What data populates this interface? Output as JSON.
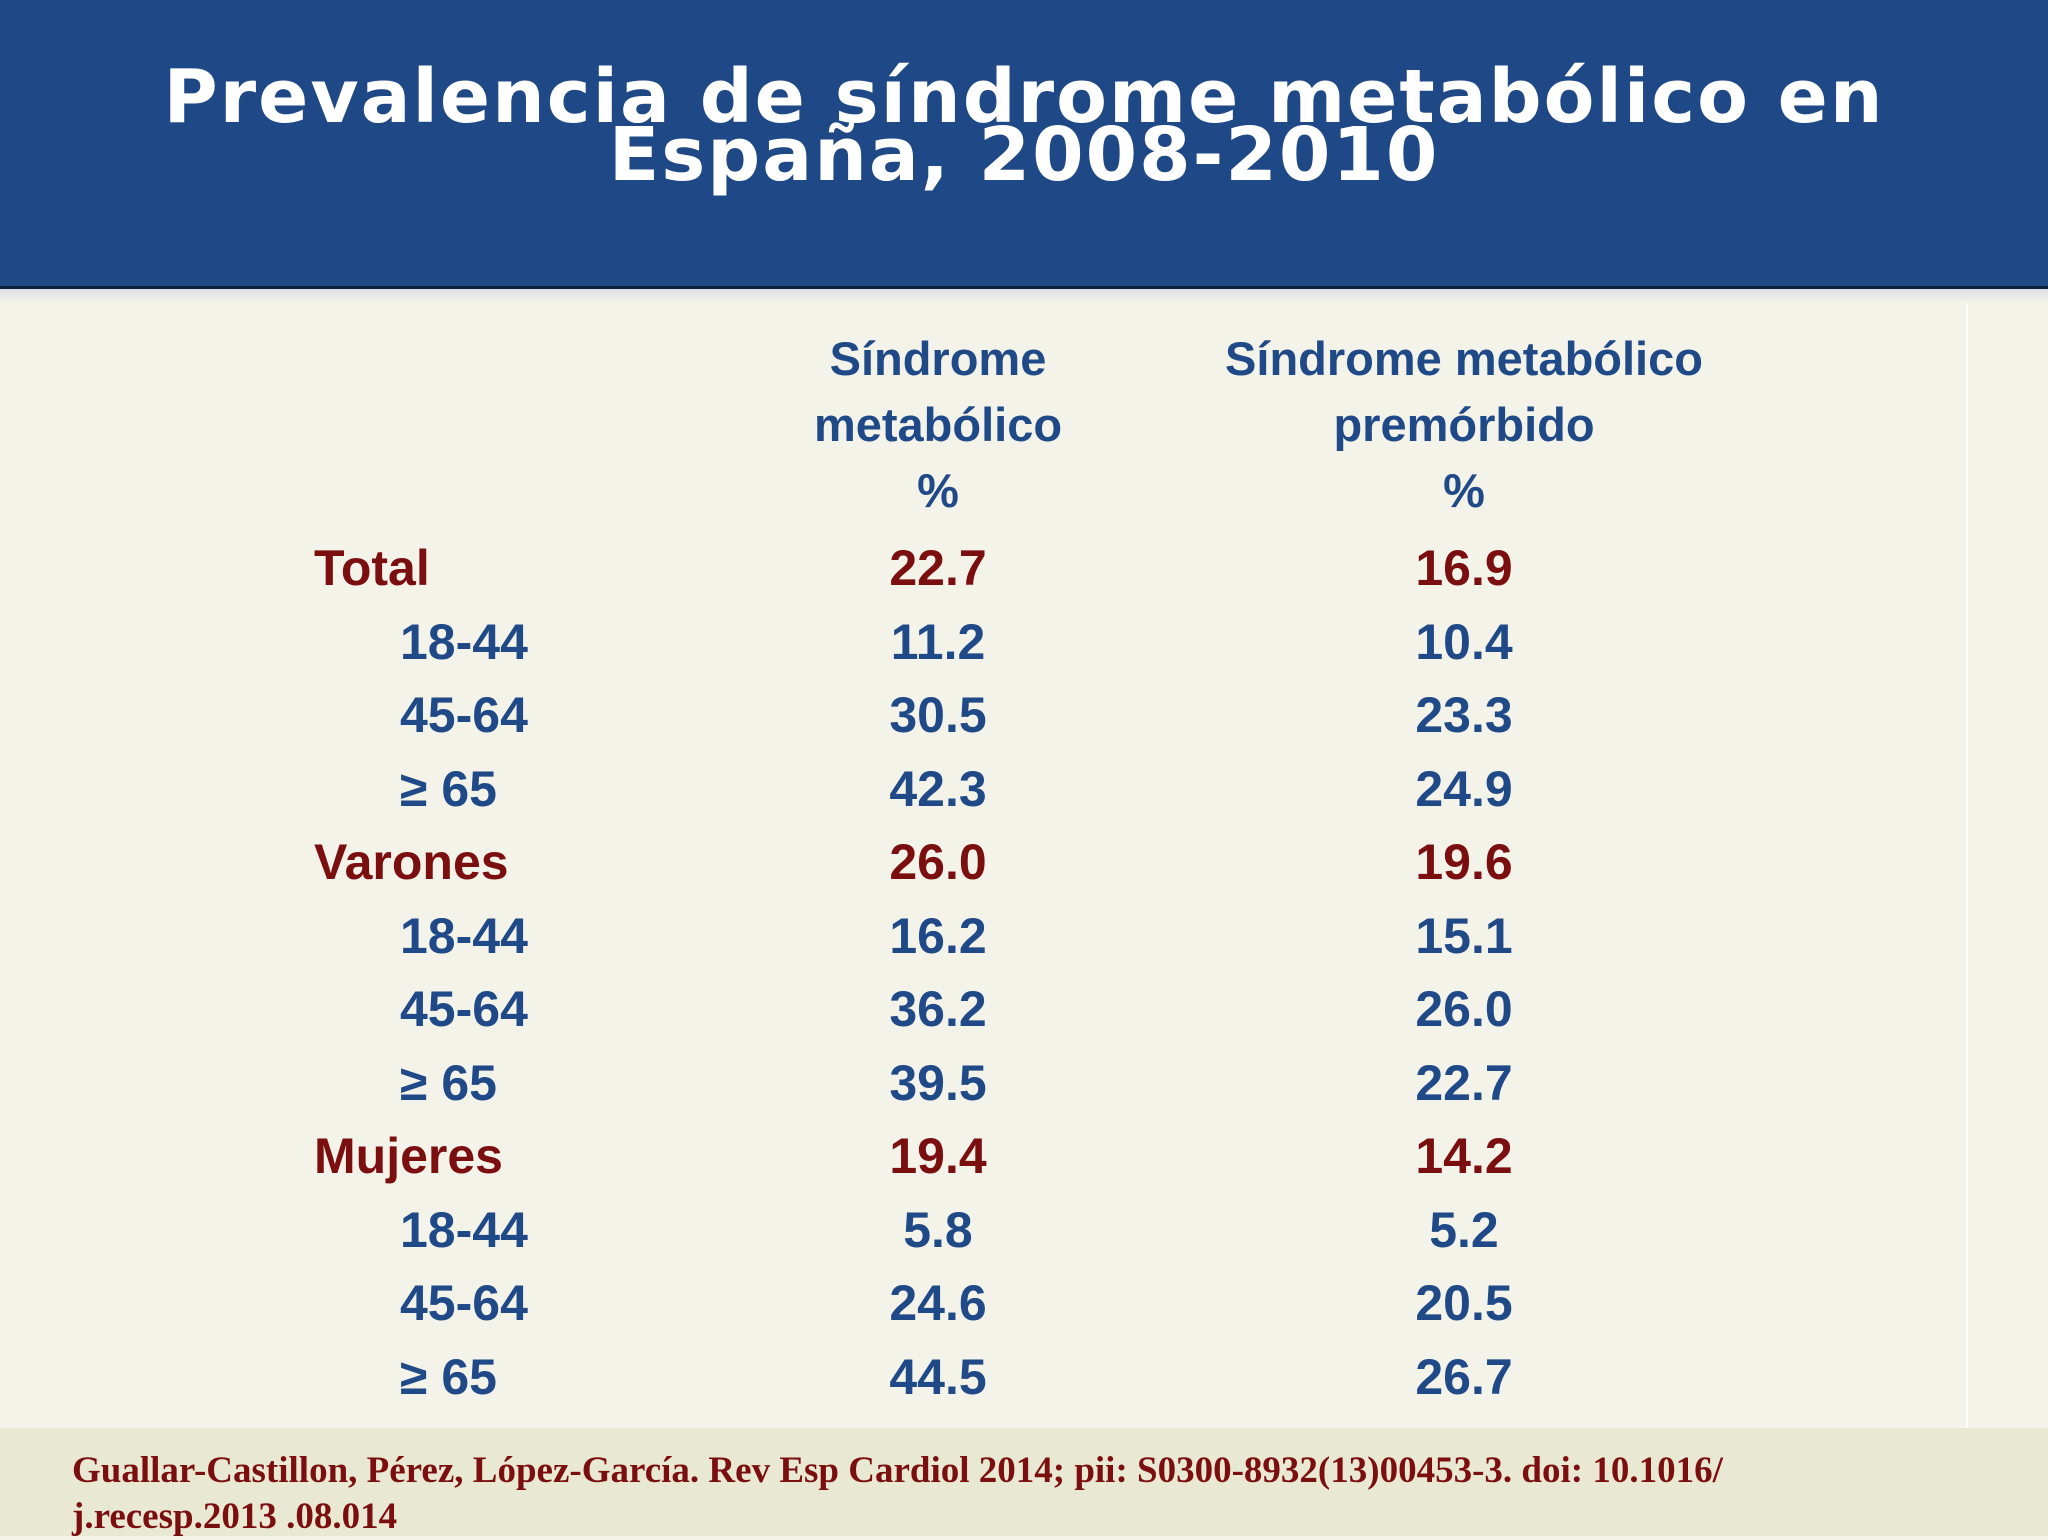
{
  "slide": {
    "title_line1": "Prevalencia de síndrome metabólico en",
    "title_line2": "España, 2008-2010"
  },
  "table": {
    "col1_header": [
      "Síndrome",
      "metabólico",
      "%"
    ],
    "col2_header": [
      "Síndrome metabólico",
      "premórbido",
      "%"
    ],
    "rows": [
      {
        "label": "Total",
        "type": "group",
        "v1": "22.7",
        "v2": "16.9"
      },
      {
        "label": "18-44",
        "type": "sub",
        "v1": "11.2",
        "v2": "10.4"
      },
      {
        "label": "45-64",
        "type": "sub",
        "v1": "30.5",
        "v2": "23.3"
      },
      {
        "label": "≥ 65",
        "type": "sub",
        "v1": "42.3",
        "v2": "24.9"
      },
      {
        "label": "Varones",
        "type": "group",
        "v1": "26.0",
        "v2": "19.6"
      },
      {
        "label": "18-44",
        "type": "sub",
        "v1": "16.2",
        "v2": "15.1"
      },
      {
        "label": "45-64",
        "type": "sub",
        "v1": "36.2",
        "v2": "26.0"
      },
      {
        "label": "≥ 65",
        "type": "sub",
        "v1": "39.5",
        "v2": "22.7"
      },
      {
        "label": "Mujeres",
        "type": "group",
        "v1": "19.4",
        "v2": "14.2"
      },
      {
        "label": "18-44",
        "type": "sub",
        "v1": "5.8",
        "v2": "5.2"
      },
      {
        "label": "45-64",
        "type": "sub",
        "v1": "24.6",
        "v2": "20.5"
      },
      {
        "label": "≥ 65",
        "type": "sub",
        "v1": "44.5",
        "v2": "26.7"
      }
    ]
  },
  "footer": {
    "citation_line1": "Guallar-Castillon, Pérez, López-García. Rev Esp Cardiol 2014; pii: S0300-8932(13)00453-3. doi: 10.1016/",
    "citation_line2": "j.recesp.2013 .08.014"
  },
  "colors": {
    "header_bg": "#1f4886",
    "group_text": "#7b0f0f",
    "sub_text": "#204a87",
    "slide_bg": "#f4f3ea",
    "footer_bg": "#e9e8d2"
  }
}
